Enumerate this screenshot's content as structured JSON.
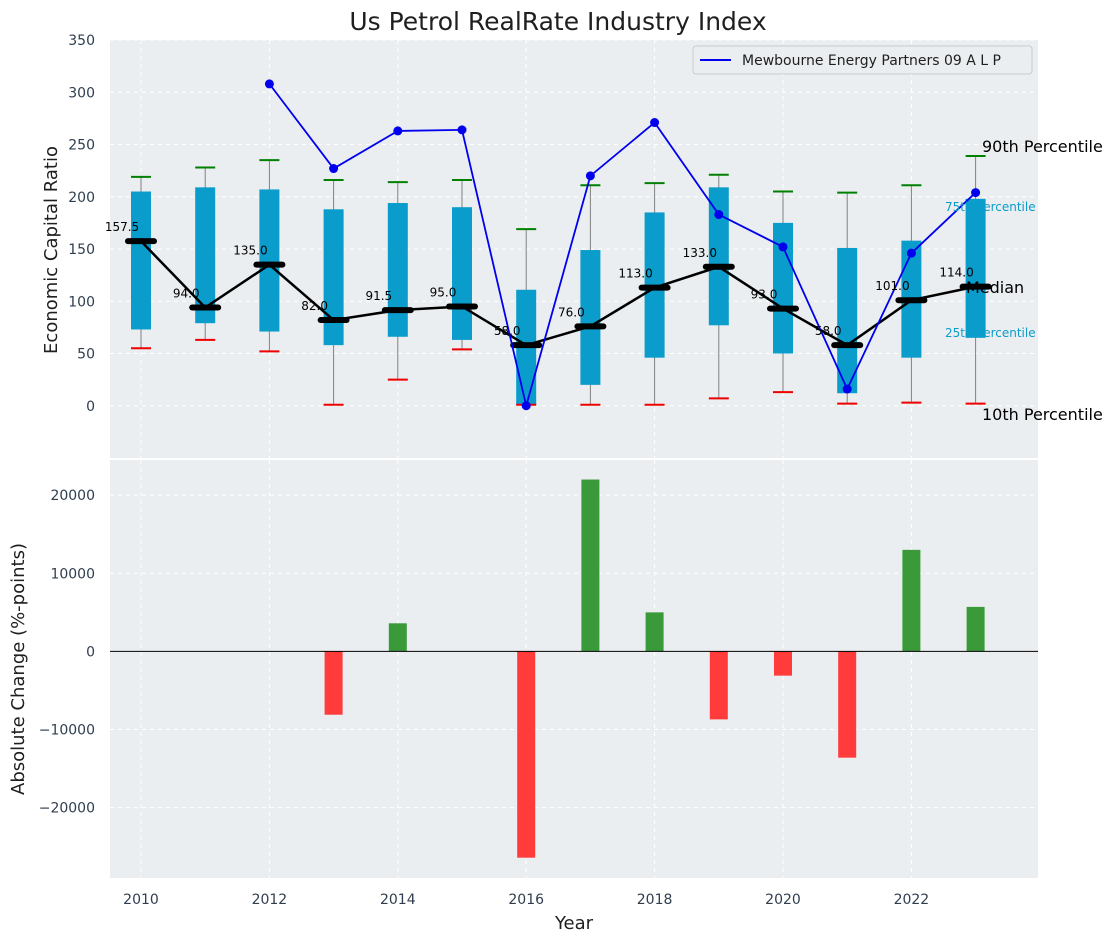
{
  "chart_data": [
    {
      "type": "box",
      "title": "Us Petrol RealRate Industry Index",
      "xlabel": "",
      "ylabel": "Economic Capital Ratio",
      "ylim": [
        -50,
        350
      ],
      "yticks": [
        0,
        50,
        100,
        150,
        200,
        250,
        300,
        350
      ],
      "years": [
        2010,
        2011,
        2012,
        2013,
        2014,
        2015,
        2016,
        2017,
        2018,
        2019,
        2020,
        2021,
        2022,
        2023
      ],
      "p10": [
        55,
        63,
        52,
        1,
        25,
        54,
        1,
        1,
        1,
        7,
        13,
        2,
        3,
        2
      ],
      "p25": [
        73,
        79,
        71,
        58,
        66,
        63,
        1,
        20,
        46,
        77,
        50,
        12,
        46,
        65
      ],
      "median": [
        157.5,
        94.0,
        135.0,
        82.0,
        91.5,
        95.0,
        58.0,
        76.0,
        113.0,
        133.0,
        93.0,
        58.0,
        101.0,
        114.0
      ],
      "median_labels": [
        "157.5",
        "94.0",
        "135.0",
        "82.0",
        "91.5",
        "95.0",
        "58.0",
        "76.0",
        "113.0",
        "133.0",
        "93.0",
        "58.0",
        "101.0",
        "114.0"
      ],
      "p75": [
        205,
        209,
        207,
        188,
        194,
        190,
        111,
        149,
        185,
        209,
        175,
        151,
        158,
        198
      ],
      "p90": [
        219,
        228,
        235,
        216,
        214,
        216,
        169,
        211,
        213,
        221,
        205,
        204,
        211,
        239
      ],
      "series": [
        {
          "name": "Mewbourne Energy Partners 09 A L P",
          "color": "#0000ee",
          "years": [
            2012,
            2013,
            2014,
            2015,
            2016,
            2017,
            2018,
            2019,
            2020,
            2021,
            2022,
            2023
          ],
          "values": [
            308,
            227,
            263,
            264,
            0,
            220,
            271,
            183,
            152,
            16,
            146,
            204
          ]
        }
      ],
      "annotations": {
        "p90_label": "90th Percentile",
        "p75_label": "75th Percentile",
        "median_label": "Median",
        "p25_label": "25th Percentile",
        "p10_label": "10th Percentile"
      },
      "colors": {
        "box": "#0a9ccb",
        "median": "#000000",
        "p90_cap": "#008000",
        "p10_cap": "#ee0000",
        "whisker": "#808080"
      }
    },
    {
      "type": "bar",
      "title": "",
      "xlabel": "Year",
      "ylabel": "Absolute Change (%-points)",
      "ylim": [
        -29000,
        24500
      ],
      "yticks": [
        -20000,
        -10000,
        0,
        10000,
        20000
      ],
      "ytick_labels": [
        "−20000",
        "−10000",
        "0",
        "10000",
        "20000"
      ],
      "xticks": [
        2010,
        2012,
        2014,
        2016,
        2018,
        2020,
        2022
      ],
      "years": [
        2013,
        2014,
        2016,
        2017,
        2018,
        2019,
        2020,
        2021,
        2022,
        2023
      ],
      "values": [
        -8100,
        3600,
        -26400,
        22000,
        5000,
        -8700,
        -3100,
        -13600,
        13000,
        5700
      ],
      "colors": {
        "positive": "#3a9a3a",
        "negative": "#ff3b3b"
      }
    }
  ]
}
